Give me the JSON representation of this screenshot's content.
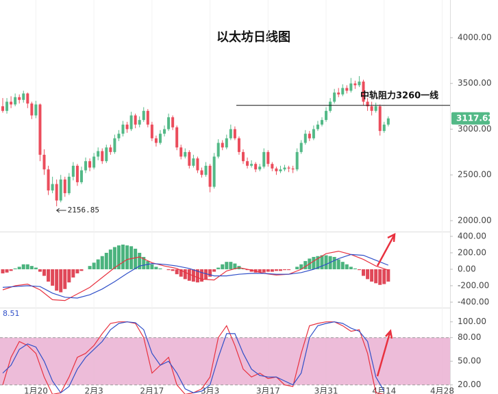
{
  "chart_data": [
    {
      "type": "candlestick",
      "title": "以太坊日线图",
      "up_color": "#53b987",
      "down_color": "#eb4d5c",
      "xlim": [
        -0.33,
        107.9
      ],
      "ylim": [
        1880,
        4412
      ],
      "yticks": [
        {
          "value": 2000,
          "label": "2000.00"
        },
        {
          "value": 2500,
          "label": "2500.00"
        },
        {
          "value": 3000,
          "label": "3000.00"
        },
        {
          "value": 3500,
          "label": "3500.00"
        },
        {
          "value": 4000,
          "label": "4000.00"
        }
      ],
      "annotation": {
        "text": "中轨阻力3260一线",
        "value": 3260
      },
      "ohlc": [
        [
          3250,
          3340,
          3180,
          3200
        ],
        [
          3200,
          3340,
          3170,
          3300
        ],
        [
          3300,
          3360,
          3230,
          3270
        ],
        [
          3270,
          3390,
          3250,
          3350
        ],
        [
          3350,
          3380,
          3280,
          3320
        ],
        [
          3320,
          3420,
          3290,
          3390
        ],
        [
          3390,
          3400,
          3230,
          3280
        ],
        [
          3280,
          3300,
          3110,
          3150
        ],
        [
          3150,
          3310,
          3120,
          3270
        ],
        [
          3270,
          3280,
          2650,
          2720
        ],
        [
          2720,
          2780,
          2500,
          2560
        ],
        [
          2560,
          2600,
          2280,
          2330
        ],
        [
          2330,
          2480,
          2300,
          2400
        ],
        [
          2400,
          2450,
          2156.85,
          2220
        ],
        [
          2220,
          2500,
          2200,
          2450
        ],
        [
          2450,
          2480,
          2260,
          2300
        ],
        [
          2300,
          2520,
          2280,
          2480
        ],
        [
          2480,
          2640,
          2440,
          2600
        ],
        [
          2600,
          2620,
          2380,
          2420
        ],
        [
          2420,
          2590,
          2400,
          2550
        ],
        [
          2550,
          2690,
          2520,
          2650
        ],
        [
          2650,
          2680,
          2540,
          2580
        ],
        [
          2580,
          2740,
          2560,
          2700
        ],
        [
          2700,
          2800,
          2660,
          2760
        ],
        [
          2760,
          2790,
          2620,
          2650
        ],
        [
          2650,
          2830,
          2630,
          2800
        ],
        [
          2800,
          2830,
          2720,
          2750
        ],
        [
          2750,
          2940,
          2730,
          2900
        ],
        [
          2900,
          2990,
          2870,
          2950
        ],
        [
          2950,
          3090,
          2920,
          3050
        ],
        [
          3050,
          3080,
          2960,
          3000
        ],
        [
          3000,
          3190,
          2980,
          3150
        ],
        [
          3150,
          3170,
          3010,
          3050
        ],
        [
          3050,
          3140,
          3020,
          3100
        ],
        [
          3100,
          3240,
          3080,
          3200
        ],
        [
          3200,
          3220,
          3020,
          3050
        ],
        [
          3050,
          3080,
          2870,
          2900
        ],
        [
          2900,
          2930,
          2810,
          2850
        ],
        [
          2850,
          2990,
          2830,
          2950
        ],
        [
          2950,
          3040,
          2920,
          3000
        ],
        [
          3000,
          3170,
          2980,
          3130
        ],
        [
          3130,
          3150,
          2990,
          3020
        ],
        [
          3020,
          3040,
          2770,
          2800
        ],
        [
          2800,
          2830,
          2670,
          2700
        ],
        [
          2700,
          2790,
          2680,
          2750
        ],
        [
          2750,
          2770,
          2570,
          2600
        ],
        [
          2600,
          2720,
          2580,
          2680
        ],
        [
          2680,
          2700,
          2520,
          2550
        ],
        [
          2550,
          2580,
          2470,
          2500
        ],
        [
          2500,
          2640,
          2480,
          2600
        ],
        [
          2600,
          2620,
          2310,
          2370
        ],
        [
          2370,
          2740,
          2350,
          2700
        ],
        [
          2700,
          2890,
          2680,
          2850
        ],
        [
          2850,
          2880,
          2770,
          2800
        ],
        [
          2800,
          2940,
          2780,
          2900
        ],
        [
          2900,
          3050,
          2880,
          3000
        ],
        [
          3000,
          3030,
          2880,
          2900
        ],
        [
          2900,
          2920,
          2720,
          2750
        ],
        [
          2750,
          2780,
          2620,
          2650
        ],
        [
          2650,
          2690,
          2570,
          2600
        ],
        [
          2600,
          2660,
          2580,
          2620
        ],
        [
          2620,
          2640,
          2530,
          2560
        ],
        [
          2560,
          2620,
          2540,
          2590
        ],
        [
          2590,
          2790,
          2570,
          2750
        ],
        [
          2750,
          2770,
          2590,
          2620
        ],
        [
          2620,
          2640,
          2540,
          2570
        ],
        [
          2570,
          2590,
          2500,
          2540
        ],
        [
          2540,
          2600,
          2520,
          2560
        ],
        [
          2560,
          2610,
          2540,
          2580
        ],
        [
          2580,
          2600,
          2530,
          2570
        ],
        [
          2570,
          2600,
          2520,
          2560
        ],
        [
          2560,
          2790,
          2540,
          2750
        ],
        [
          2750,
          2880,
          2730,
          2850
        ],
        [
          2850,
          2990,
          2830,
          2950
        ],
        [
          2950,
          2980,
          2870,
          2900
        ],
        [
          2900,
          3040,
          2880,
          3000
        ],
        [
          3000,
          3090,
          2980,
          3050
        ],
        [
          3050,
          3130,
          3030,
          3100
        ],
        [
          3100,
          3240,
          3080,
          3200
        ],
        [
          3200,
          3340,
          3180,
          3300
        ],
        [
          3300,
          3440,
          3280,
          3400
        ],
        [
          3400,
          3450,
          3350,
          3380
        ],
        [
          3380,
          3490,
          3360,
          3450
        ],
        [
          3450,
          3480,
          3390,
          3420
        ],
        [
          3420,
          3560,
          3400,
          3500
        ],
        [
          3500,
          3530,
          3440,
          3480
        ],
        [
          3480,
          3580,
          3460,
          3520
        ],
        [
          3520,
          3540,
          3260,
          3300
        ],
        [
          3300,
          3340,
          3200,
          3250
        ],
        [
          3250,
          3300,
          3150,
          3200
        ],
        [
          3200,
          3290,
          3180,
          3250
        ],
        [
          3250,
          3270,
          2930,
          2980
        ],
        [
          2980,
          3080,
          2960,
          3050
        ],
        [
          3050,
          3140,
          3030,
          3117.62
        ]
      ]
    },
    {
      "type": "macd",
      "ylim": [
        -467,
        458
      ],
      "yticks": [
        {
          "value": -400,
          "label": "-400.00"
        },
        {
          "value": -200,
          "label": "-200.00"
        },
        {
          "value": 0,
          "label": "0.00"
        },
        {
          "value": 200,
          "label": "200.00"
        },
        {
          "value": 400,
          "label": "400.00"
        }
      ],
      "histogram": {
        "pos_color": "#4bb37e",
        "neg_color": "#e04858",
        "values": [
          -50,
          -40,
          -20,
          10,
          30,
          60,
          60,
          40,
          20,
          -30,
          -80,
          -150,
          -200,
          -260,
          -280,
          -240,
          -160,
          -100,
          -50,
          -20,
          0,
          40,
          80,
          120,
          160,
          200,
          240,
          270,
          290,
          300,
          290,
          280,
          250,
          200,
          150,
          100,
          60,
          30,
          10,
          0,
          -10,
          -20,
          -60,
          -90,
          -120,
          -140,
          -150,
          -160,
          -150,
          -120,
          -90,
          -30,
          20,
          60,
          90,
          90,
          70,
          40,
          10,
          -10,
          -30,
          -40,
          -40,
          -40,
          -30,
          -30,
          -20,
          -20,
          -10,
          -10,
          0,
          30,
          60,
          100,
          130,
          150,
          160,
          170,
          170,
          160,
          150,
          120,
          90,
          60,
          30,
          10,
          -10,
          -80,
          -120,
          -150,
          -170,
          -190,
          -180,
          -150
        ]
      },
      "series": [
        {
          "color": "#e8313f",
          "x": [
            0,
            3,
            6,
            9,
            12,
            15,
            18,
            21,
            24,
            27,
            30,
            33,
            36,
            39,
            42,
            45,
            48,
            51,
            54,
            57,
            60,
            63,
            66,
            69,
            72,
            75,
            78,
            81,
            84,
            87,
            90,
            93
          ],
          "values": [
            -250,
            -200,
            -180,
            -250,
            -370,
            -380,
            -300,
            -220,
            -100,
            20,
            120,
            150,
            80,
            40,
            10,
            -60,
            -120,
            -130,
            -20,
            20,
            -10,
            -50,
            -70,
            -60,
            0,
            100,
            190,
            220,
            180,
            120,
            40,
            -10
          ]
        },
        {
          "color": "#2f4fc8",
          "x": [
            0,
            3,
            6,
            9,
            12,
            15,
            18,
            21,
            24,
            27,
            30,
            33,
            36,
            39,
            42,
            45,
            48,
            51,
            54,
            57,
            60,
            63,
            66,
            69,
            72,
            75,
            78,
            81,
            84,
            87,
            90,
            93
          ],
          "values": [
            -220,
            -210,
            -200,
            -210,
            -290,
            -340,
            -350,
            -310,
            -240,
            -150,
            -50,
            40,
            70,
            60,
            40,
            10,
            -40,
            -80,
            -80,
            -60,
            -50,
            -50,
            -60,
            -60,
            -40,
            0,
            60,
            130,
            180,
            170,
            110,
            50
          ]
        }
      ]
    },
    {
      "type": "stochastic",
      "ylim": [
        8,
        118
      ],
      "band": [
        20,
        80
      ],
      "band_color": "#ebb5d5",
      "last_value": 8.51,
      "yticks": [
        {
          "value": 20,
          "label": "20.00"
        },
        {
          "value": 50,
          "label": "50.00"
        },
        {
          "value": 80,
          "label": "80.00"
        },
        {
          "value": 100,
          "label": "100.00"
        }
      ],
      "xticks": [
        {
          "value": 8,
          "label": "1月20"
        },
        {
          "value": 22,
          "label": "2月3"
        },
        {
          "value": 36,
          "label": "2月17"
        },
        {
          "value": 50,
          "label": "3月3"
        },
        {
          "value": 64,
          "label": "3月17"
        },
        {
          "value": 78,
          "label": "3月31"
        },
        {
          "value": 92,
          "label": "4月14"
        },
        {
          "value": 106,
          "label": "4月28"
        }
      ],
      "series": [
        {
          "color": "#e8313f",
          "x": [
            0,
            2,
            4,
            6,
            8,
            10,
            12,
            14,
            16,
            18,
            20,
            22,
            24,
            26,
            28,
            30,
            32,
            34,
            36,
            38,
            40,
            42,
            44,
            46,
            48,
            50,
            52,
            54,
            56,
            58,
            60,
            62,
            64,
            66,
            68,
            70,
            72,
            74,
            76,
            78,
            80,
            82,
            84,
            86,
            88,
            90,
            92
          ],
          "values": [
            20,
            55,
            75,
            70,
            60,
            30,
            8,
            10,
            30,
            55,
            60,
            70,
            85,
            98,
            100,
            100,
            98,
            80,
            35,
            45,
            55,
            20,
            8,
            10,
            15,
            30,
            80,
            95,
            70,
            40,
            30,
            35,
            28,
            30,
            20,
            18,
            60,
            95,
            98,
            100,
            100,
            95,
            88,
            90,
            60,
            10,
            8
          ]
        },
        {
          "color": "#2f4fc8",
          "x": [
            0,
            2,
            4,
            6,
            8,
            10,
            12,
            14,
            16,
            18,
            20,
            22,
            24,
            26,
            28,
            30,
            32,
            34,
            36,
            38,
            40,
            42,
            44,
            46,
            48,
            50,
            52,
            54,
            56,
            58,
            60,
            62,
            64,
            66,
            68,
            70,
            72,
            74,
            76,
            78,
            80,
            82,
            84,
            86,
            88,
            90,
            92
          ],
          "values": [
            35,
            45,
            65,
            72,
            68,
            50,
            25,
            10,
            18,
            40,
            55,
            65,
            75,
            90,
            98,
            100,
            99,
            90,
            60,
            45,
            50,
            35,
            15,
            10,
            12,
            20,
            55,
            85,
            85,
            60,
            40,
            32,
            30,
            30,
            25,
            20,
            35,
            80,
            95,
            98,
            100,
            98,
            92,
            88,
            75,
            30,
            12
          ]
        }
      ]
    }
  ]
}
